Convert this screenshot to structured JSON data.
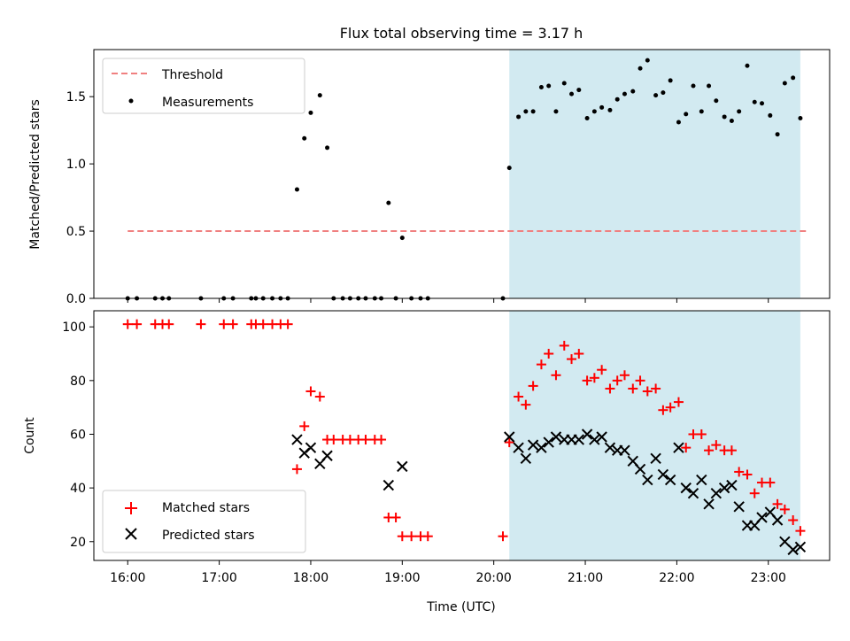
{
  "title": "Flux total observing time = 3.17 h",
  "chart_data": [
    {
      "type": "scatter",
      "title": "Flux total observing time = 3.17 h",
      "ylabel": "Matched/Predicted stars",
      "xlabel": "",
      "xlim": [
        15.63,
        23.67
      ],
      "ylim": [
        0,
        1.85
      ],
      "yticks": [
        0.0,
        0.5,
        1.0,
        1.5
      ],
      "ytick_labels": [
        "0.0",
        "0.5",
        "1.0",
        "1.5"
      ],
      "xticks": [
        16,
        17,
        18,
        19,
        20,
        21,
        22,
        23
      ],
      "shaded_region": [
        20.17,
        23.35
      ],
      "shade_color": "#add8e6",
      "threshold": {
        "name": "Threshold",
        "value": 0.5,
        "x_range": [
          16.0,
          23.45
        ],
        "color": "#f08080"
      },
      "legend": [
        "Threshold",
        "Measurements"
      ],
      "legend_position": "upper-left",
      "measurements": {
        "name": "Measurements",
        "color": "#000000",
        "x": [
          16.0,
          16.1,
          16.3,
          16.38,
          16.45,
          16.8,
          17.05,
          17.15,
          17.35,
          17.4,
          17.48,
          17.58,
          17.67,
          17.75,
          17.85,
          17.93,
          18.0,
          18.1,
          18.18,
          18.25,
          18.35,
          18.43,
          18.52,
          18.6,
          18.7,
          18.77,
          18.85,
          18.93,
          19.0,
          19.1,
          19.2,
          19.28,
          20.1,
          20.17,
          20.27,
          20.35,
          20.43,
          20.52,
          20.6,
          20.68,
          20.77,
          20.85,
          20.93,
          21.02,
          21.1,
          21.18,
          21.27,
          21.35,
          21.43,
          21.52,
          21.6,
          21.68,
          21.77,
          21.85,
          21.93,
          22.02,
          22.1,
          22.18,
          22.27,
          22.35,
          22.43,
          22.52,
          22.6,
          22.68,
          22.77,
          22.85,
          22.93,
          23.02,
          23.1,
          23.18,
          23.27,
          23.35
        ],
        "y": [
          0,
          0,
          0,
          0,
          0,
          0,
          0,
          0,
          0,
          0,
          0,
          0,
          0,
          0,
          0.81,
          1.19,
          1.38,
          1.51,
          1.12,
          0,
          0,
          0,
          0,
          0,
          0,
          0,
          0.71,
          0,
          0.45,
          0,
          0,
          0,
          0,
          0.97,
          1.35,
          1.39,
          1.39,
          1.57,
          1.58,
          1.39,
          1.6,
          1.52,
          1.55,
          1.34,
          1.39,
          1.42,
          1.4,
          1.48,
          1.52,
          1.54,
          1.71,
          1.77,
          1.51,
          1.53,
          1.62,
          1.31,
          1.37,
          1.58,
          1.39,
          1.58,
          1.47,
          1.35,
          1.32,
          1.39,
          1.73,
          1.46,
          1.45,
          1.36,
          1.22,
          1.6,
          1.64,
          1.34
        ]
      }
    },
    {
      "type": "scatter",
      "title": "",
      "ylabel": "Count",
      "xlabel": "Time (UTC)",
      "xlim": [
        15.63,
        23.67
      ],
      "ylim": [
        13,
        106
      ],
      "yticks": [
        20,
        40,
        60,
        80,
        100
      ],
      "ytick_labels": [
        "20",
        "40",
        "60",
        "80",
        "100"
      ],
      "xticks": [
        16,
        17,
        18,
        19,
        20,
        21,
        22,
        23
      ],
      "xtick_labels": [
        "16:00",
        "17:00",
        "18:00",
        "19:00",
        "20:00",
        "21:00",
        "22:00",
        "23:00"
      ],
      "shaded_region": [
        20.17,
        23.35
      ],
      "shade_color": "#add8e6",
      "legend": [
        "Matched stars",
        "Predicted stars"
      ],
      "legend_position": "lower-left",
      "series": [
        {
          "name": "Matched stars",
          "marker": "+",
          "color": "#ff0000",
          "x": [
            16.0,
            16.1,
            16.3,
            16.38,
            16.45,
            16.8,
            17.05,
            17.15,
            17.35,
            17.4,
            17.48,
            17.58,
            17.67,
            17.75,
            17.85,
            17.93,
            18.0,
            18.1,
            18.18,
            18.25,
            18.35,
            18.43,
            18.52,
            18.6,
            18.7,
            18.77,
            18.85,
            18.93,
            19.0,
            19.1,
            19.2,
            19.28,
            20.1,
            20.17,
            20.27,
            20.35,
            20.43,
            20.52,
            20.6,
            20.68,
            20.77,
            20.85,
            20.93,
            21.02,
            21.1,
            21.18,
            21.27,
            21.35,
            21.43,
            21.52,
            21.6,
            21.68,
            21.77,
            21.85,
            21.93,
            22.02,
            22.1,
            22.18,
            22.27,
            22.35,
            22.43,
            22.52,
            22.6,
            22.68,
            22.77,
            22.85,
            22.93,
            23.02,
            23.1,
            23.18,
            23.27,
            23.35
          ],
          "y": [
            101,
            101,
            101,
            101,
            101,
            101,
            101,
            101,
            101,
            101,
            101,
            101,
            101,
            101,
            47,
            63,
            76,
            74,
            58,
            58,
            58,
            58,
            58,
            58,
            58,
            58,
            29,
            29,
            22,
            22,
            22,
            22,
            22,
            57,
            74,
            71,
            78,
            86,
            90,
            82,
            93,
            88,
            90,
            80,
            81,
            84,
            77,
            80,
            82,
            77,
            80,
            76,
            77,
            69,
            70,
            72,
            55,
            60,
            60,
            54,
            56,
            54,
            54,
            46,
            45,
            38,
            42,
            42,
            34,
            32,
            28,
            24
          ]
        },
        {
          "name": "Predicted stars",
          "marker": "x",
          "color": "#000000",
          "x": [
            17.85,
            17.93,
            18.0,
            18.1,
            18.18,
            18.85,
            19.0,
            20.17,
            20.27,
            20.35,
            20.43,
            20.52,
            20.6,
            20.68,
            20.77,
            20.85,
            20.93,
            21.02,
            21.1,
            21.18,
            21.27,
            21.35,
            21.43,
            21.52,
            21.6,
            21.68,
            21.77,
            21.85,
            21.93,
            22.02,
            22.1,
            22.18,
            22.27,
            22.35,
            22.43,
            22.52,
            22.6,
            22.68,
            22.77,
            22.85,
            22.93,
            23.02,
            23.1,
            23.18,
            23.27,
            23.35
          ],
          "y": [
            58,
            53,
            55,
            49,
            52,
            41,
            48,
            59,
            55,
            51,
            56,
            55,
            57,
            59,
            58,
            58,
            58,
            60,
            58,
            59,
            55,
            54,
            54,
            50,
            47,
            43,
            51,
            45,
            43,
            55,
            40,
            38,
            43,
            34,
            38,
            40,
            41,
            33,
            26,
            26,
            29,
            31,
            28,
            20,
            17,
            18
          ]
        }
      ]
    }
  ]
}
